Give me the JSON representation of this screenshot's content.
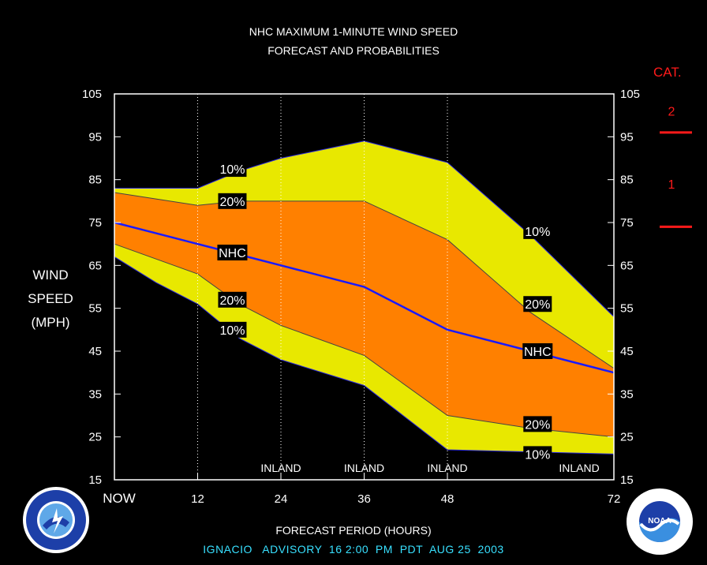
{
  "chart_data": {
    "type": "area",
    "title": "NHC MAXIMUM 1-MINUTE WIND SPEED",
    "subtitle": "FORECAST AND PROBABILITIES",
    "ylabel_lines": [
      "WIND",
      "SPEED",
      "(MPH)"
    ],
    "xlabel": "FORECAST PERIOD (HOURS)",
    "ylim": [
      15,
      105
    ],
    "xlim": [
      0,
      72
    ],
    "yticks": [
      15,
      25,
      35,
      45,
      55,
      65,
      75,
      85,
      95,
      105
    ],
    "xticks": [
      {
        "x": 0,
        "label": "NOW"
      },
      {
        "x": 12,
        "label": "12"
      },
      {
        "x": 24,
        "label": "24"
      },
      {
        "x": 36,
        "label": "36"
      },
      {
        "x": 48,
        "label": "48"
      },
      {
        "x": 72,
        "label": "72"
      }
    ],
    "grid_x": [
      12,
      24,
      36,
      48
    ],
    "x": [
      0,
      6,
      12,
      18,
      24,
      36,
      48,
      60,
      72
    ],
    "bands": [
      {
        "name": "10%",
        "color": "#e8e800",
        "upper": [
          83,
          83,
          83,
          87,
          90,
          94,
          89,
          72,
          53
        ],
        "lower": [
          67,
          61,
          56,
          48,
          43,
          37,
          22,
          21.5,
          21
        ]
      },
      {
        "name": "20%",
        "color": "#ff8000",
        "upper": [
          82,
          80.5,
          79,
          80,
          80,
          80,
          71,
          54,
          41
        ],
        "lower": [
          70,
          66.5,
          63,
          56,
          51,
          44,
          30,
          27,
          25
        ]
      }
    ],
    "series": [
      {
        "name": "NHC",
        "color": "#1a1aff",
        "values": [
          75,
          72.5,
          70,
          67.5,
          65,
          60,
          50,
          45,
          40
        ]
      }
    ],
    "annotations": [
      {
        "text": "10%",
        "x": 17,
        "y": 87.5
      },
      {
        "text": "20%",
        "x": 17,
        "y": 80
      },
      {
        "text": "NHC",
        "x": 17,
        "y": 68
      },
      {
        "text": "20%",
        "x": 17,
        "y": 57
      },
      {
        "text": "10%",
        "x": 17,
        "y": 50
      },
      {
        "text": "10%",
        "x": 61,
        "y": 73
      },
      {
        "text": "20%",
        "x": 61,
        "y": 56
      },
      {
        "text": "NHC",
        "x": 61,
        "y": 45
      },
      {
        "text": "20%",
        "x": 61,
        "y": 28
      },
      {
        "text": "10%",
        "x": 61,
        "y": 21
      }
    ],
    "inland_labels": [
      {
        "text": "INLAND",
        "x": 24
      },
      {
        "text": "INLAND",
        "x": 36
      },
      {
        "text": "INLAND",
        "x": 48
      },
      {
        "text": "INLAND",
        "x": 67
      }
    ],
    "category_scale": {
      "title": "CAT.",
      "labels": [
        {
          "text": "2",
          "y": 101
        },
        {
          "text": "1",
          "y": 84
        }
      ],
      "thresholds": [
        96,
        74
      ],
      "color": "#ff1a1a"
    }
  },
  "footer": {
    "advisory": "IGNACIO   ADVISORY  16 2:00  PM  PDT  AUG 25  2003",
    "advisory_color": "#38e0ff"
  },
  "logos": {
    "left": "nws-logo",
    "right": "noaa-logo"
  }
}
